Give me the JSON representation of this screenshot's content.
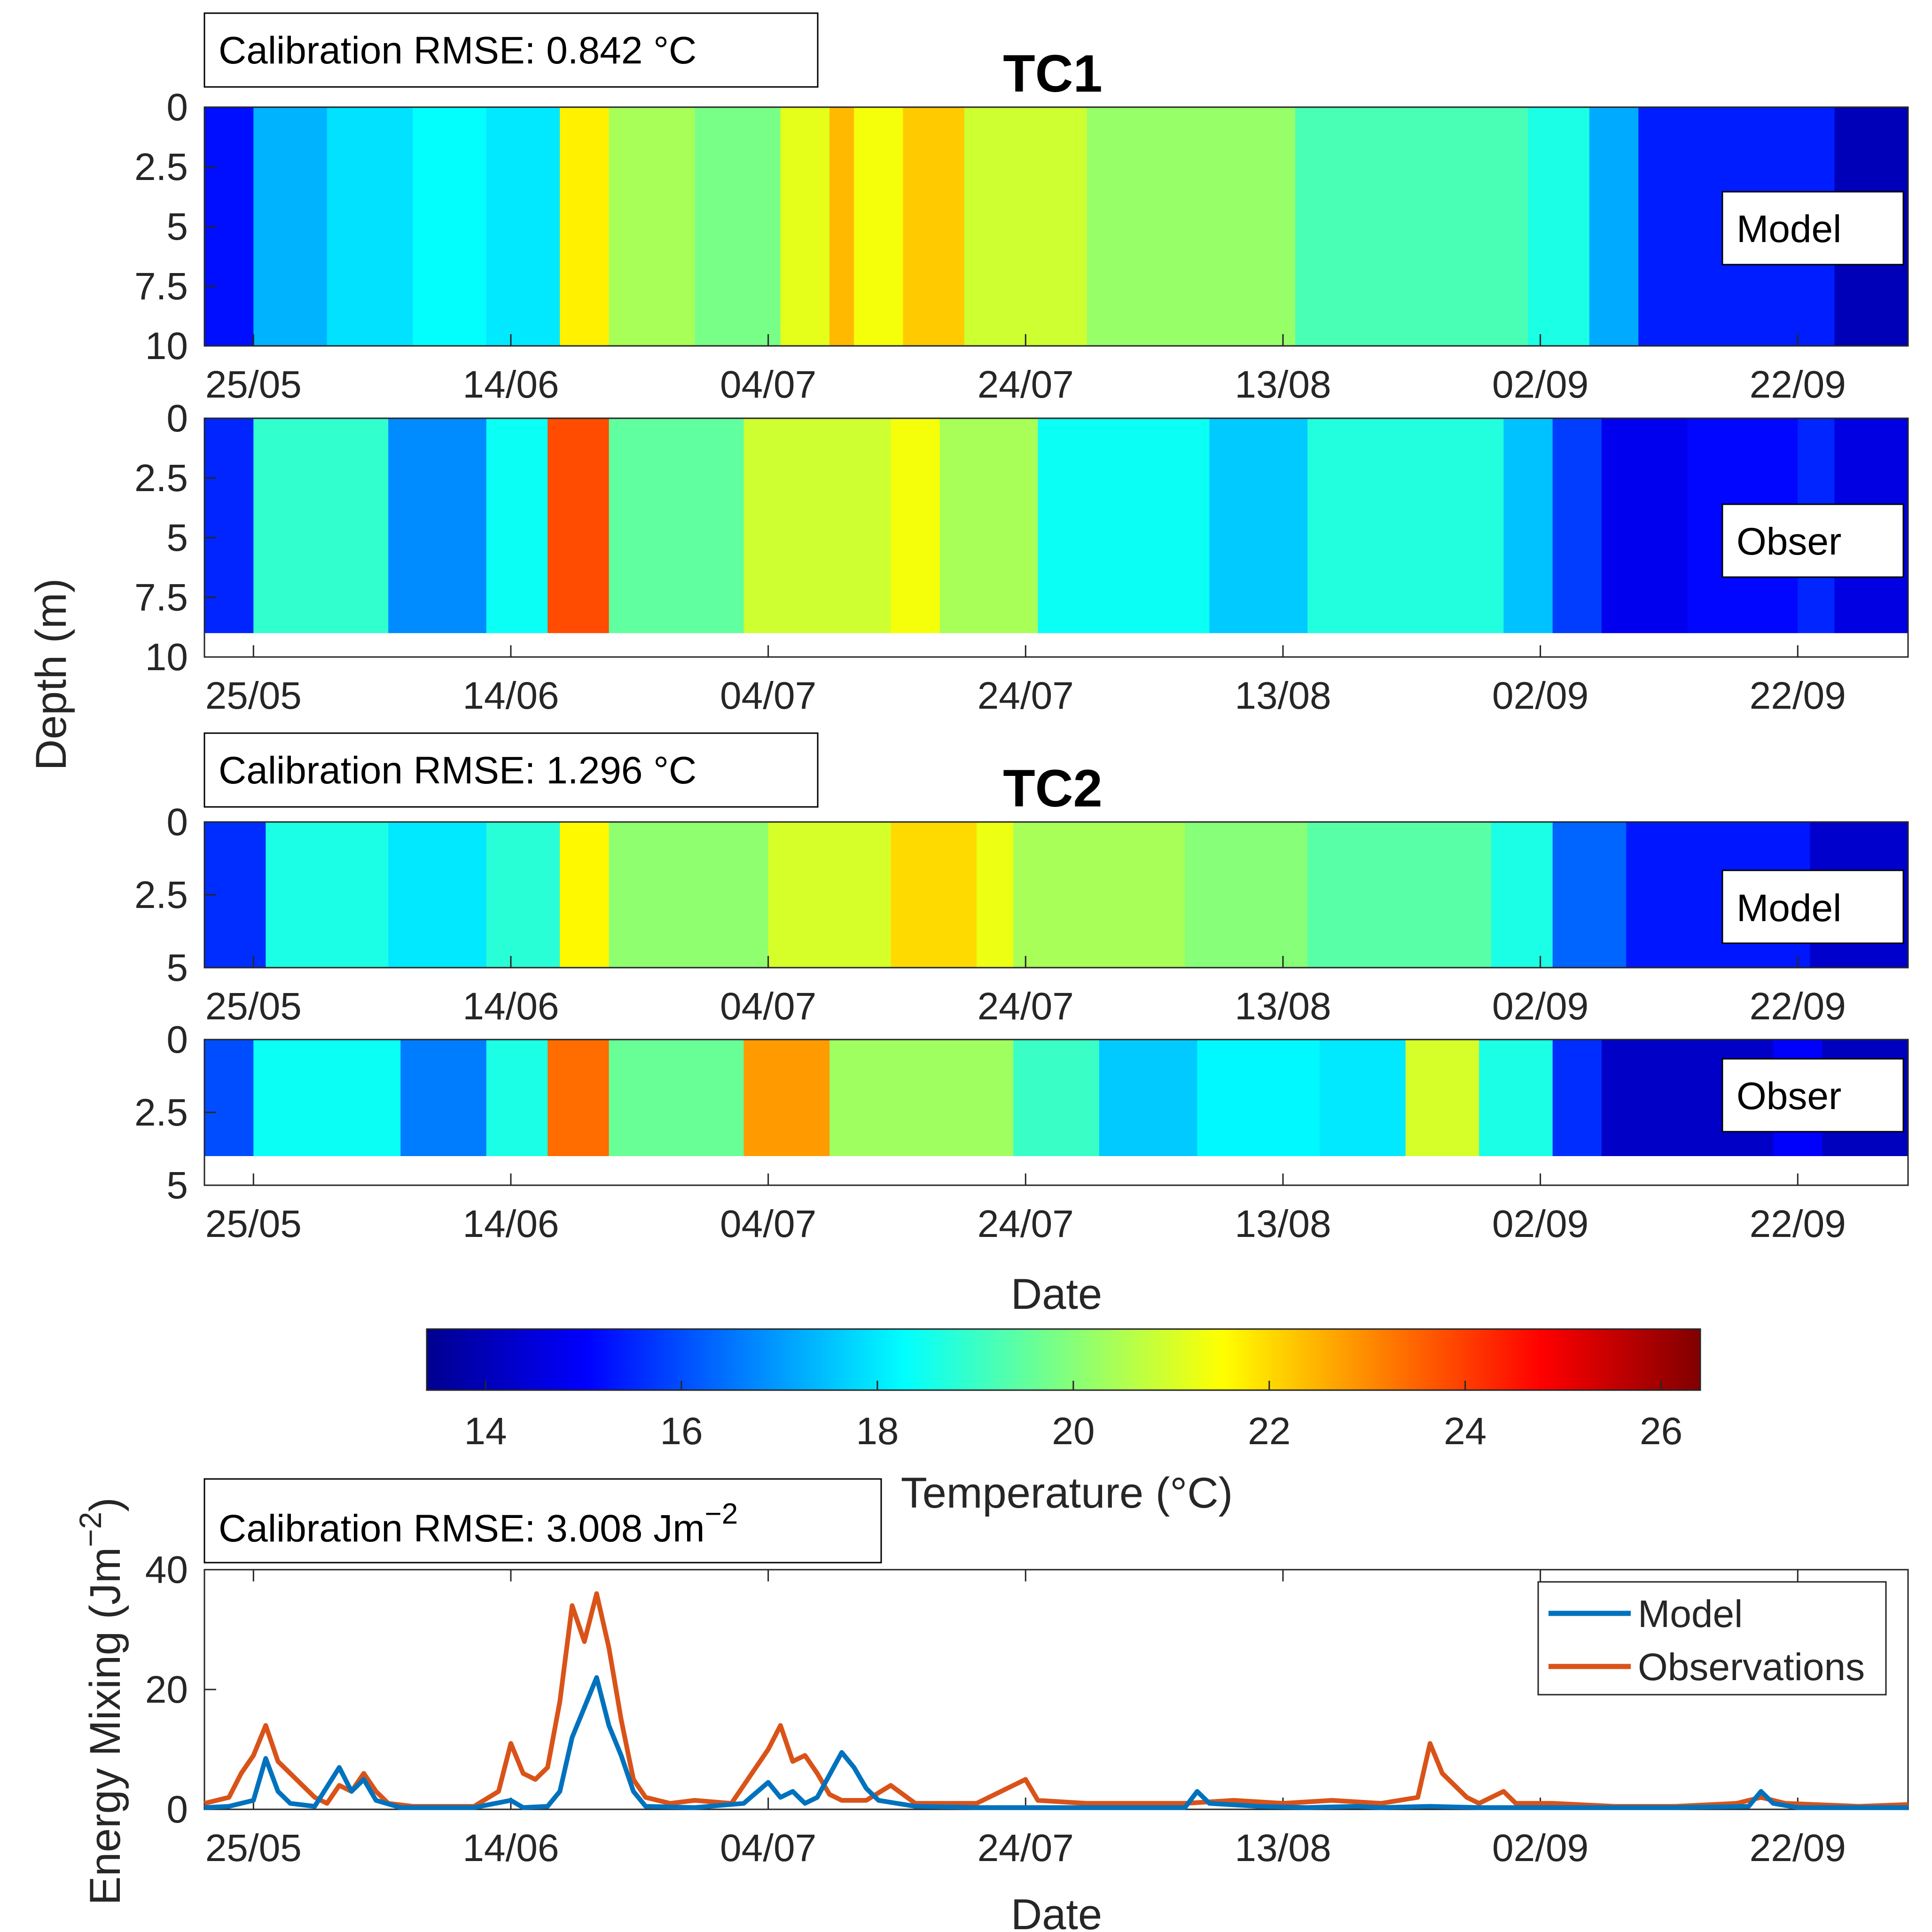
{
  "chart_data": [
    {
      "type": "heatmap",
      "panel": "TC1 Model",
      "title": "TC1",
      "annotation": "Calibration RMSE: 0.842 °C",
      "label": "Model",
      "ylim": [
        0,
        10
      ],
      "yticks": [
        "0",
        "2.5",
        "5",
        "7.5",
        "10"
      ],
      "xticks": [
        "25/05",
        "14/06",
        "04/07",
        "24/07",
        "13/08",
        "02/09",
        "22/09"
      ],
      "data_depth_max": 10,
      "bands": [
        {
          "day": 0,
          "temp": 15.2
        },
        {
          "day": 4,
          "temp": 17.3
        },
        {
          "day": 10,
          "temp": 17.9
        },
        {
          "day": 17,
          "temp": 18.3
        },
        {
          "day": 23,
          "temp": 18.0
        },
        {
          "day": 29,
          "temp": 21.7
        },
        {
          "day": 33,
          "temp": 20.4
        },
        {
          "day": 40,
          "temp": 19.8
        },
        {
          "day": 47,
          "temp": 21.2
        },
        {
          "day": 51,
          "temp": 22.4
        },
        {
          "day": 53,
          "temp": 21.4
        },
        {
          "day": 57,
          "temp": 22.2
        },
        {
          "day": 62,
          "temp": 20.9
        },
        {
          "day": 72,
          "temp": 20.2
        },
        {
          "day": 89,
          "temp": 19.2
        },
        {
          "day": 108,
          "temp": 18.6
        },
        {
          "day": 113,
          "temp": 17.2
        },
        {
          "day": 117,
          "temp": 15.4
        },
        {
          "day": 133,
          "temp": 14.0
        }
      ]
    },
    {
      "type": "heatmap",
      "panel": "TC1 Observations",
      "label": "Obser",
      "ylim": [
        0,
        10
      ],
      "yticks": [
        "0",
        "2.5",
        "5",
        "7.5",
        "10"
      ],
      "xticks": [
        "25/05",
        "14/06",
        "04/07",
        "24/07",
        "13/08",
        "02/09",
        "22/09"
      ],
      "data_depth_max": 9,
      "bands": [
        {
          "day": 0,
          "temp": 15.5
        },
        {
          "day": 4,
          "temp": 18.9
        },
        {
          "day": 15,
          "temp": 16.8
        },
        {
          "day": 23,
          "temp": 18.4
        },
        {
          "day": 28,
          "temp": 23.8
        },
        {
          "day": 33,
          "temp": 19.5
        },
        {
          "day": 44,
          "temp": 20.9
        },
        {
          "day": 56,
          "temp": 21.4
        },
        {
          "day": 60,
          "temp": 20.4
        },
        {
          "day": 68,
          "temp": 18.4
        },
        {
          "day": 82,
          "temp": 17.6
        },
        {
          "day": 90,
          "temp": 18.7
        },
        {
          "day": 106,
          "temp": 17.5
        },
        {
          "day": 110,
          "temp": 15.8
        },
        {
          "day": 114,
          "temp": 14.8
        },
        {
          "day": 121,
          "temp": 15.1
        },
        {
          "day": 130,
          "temp": 15.5
        },
        {
          "day": 133,
          "temp": 14.6
        }
      ]
    },
    {
      "type": "heatmap",
      "panel": "TC2 Model",
      "title": "TC2",
      "annotation": "Calibration RMSE: 1.296 °C",
      "label": "Model",
      "ylim": [
        0,
        5
      ],
      "yticks": [
        "0",
        "2.5",
        "5"
      ],
      "xticks": [
        "25/05",
        "14/06",
        "04/07",
        "24/07",
        "13/08",
        "02/09",
        "22/09"
      ],
      "data_depth_max": 5,
      "bands": [
        {
          "day": 0,
          "temp": 15.6
        },
        {
          "day": 5,
          "temp": 18.6
        },
        {
          "day": 15,
          "temp": 18.0
        },
        {
          "day": 23,
          "temp": 18.8
        },
        {
          "day": 29,
          "temp": 21.6
        },
        {
          "day": 33,
          "temp": 20.1
        },
        {
          "day": 46,
          "temp": 21.0
        },
        {
          "day": 56,
          "temp": 22.0
        },
        {
          "day": 63,
          "temp": 21.3
        },
        {
          "day": 66,
          "temp": 20.4
        },
        {
          "day": 80,
          "temp": 20.0
        },
        {
          "day": 90,
          "temp": 19.4
        },
        {
          "day": 105,
          "temp": 18.6
        },
        {
          "day": 110,
          "temp": 16.3
        },
        {
          "day": 116,
          "temp": 15.3
        },
        {
          "day": 131,
          "temp": 14.3
        }
      ]
    },
    {
      "type": "heatmap",
      "panel": "TC2 Observations",
      "label": "Obser",
      "ylim": [
        0,
        5
      ],
      "yticks": [
        "0",
        "2.5",
        "5"
      ],
      "xticks": [
        "25/05",
        "14/06",
        "04/07",
        "24/07",
        "13/08",
        "02/09",
        "22/09"
      ],
      "data_depth_max": 4,
      "bands": [
        {
          "day": 0,
          "temp": 16.0
        },
        {
          "day": 4,
          "temp": 18.4
        },
        {
          "day": 16,
          "temp": 16.6
        },
        {
          "day": 23,
          "temp": 18.6
        },
        {
          "day": 28,
          "temp": 23.4
        },
        {
          "day": 33,
          "temp": 19.6
        },
        {
          "day": 44,
          "temp": 22.8
        },
        {
          "day": 51,
          "temp": 20.3
        },
        {
          "day": 66,
          "temp": 19.0
        },
        {
          "day": 73,
          "temp": 17.6
        },
        {
          "day": 81,
          "temp": 18.2
        },
        {
          "day": 91,
          "temp": 18.0
        },
        {
          "day": 98,
          "temp": 21.0
        },
        {
          "day": 104,
          "temp": 18.6
        },
        {
          "day": 110,
          "temp": 15.6
        },
        {
          "day": 114,
          "temp": 14.2
        },
        {
          "day": 128,
          "temp": 15.0
        },
        {
          "day": 132,
          "temp": 14.1
        }
      ]
    },
    {
      "type": "colorbar",
      "label": "Temperature (°C)",
      "range": [
        13.4,
        26.4
      ],
      "ticks": [
        "14",
        "16",
        "18",
        "20",
        "22",
        "24",
        "26"
      ],
      "colormap": [
        "#00008f",
        "#0000ff",
        "#00ffff",
        "#ffff00",
        "#ff0000",
        "#800000"
      ]
    },
    {
      "type": "line",
      "annotation": "Calibration RMSE: 3.008 Jm",
      "annotation_sup": "−2",
      "xlabel": "Date",
      "ylabel": "Energy Mixing (Jm",
      "ylabel_sup": "−2",
      "ylabel_end": ")",
      "ylim": [
        0,
        40
      ],
      "yticks": [
        "0",
        "20",
        "40"
      ],
      "xticks": [
        "25/05",
        "14/06",
        "04/07",
        "24/07",
        "13/08",
        "02/09",
        "22/09"
      ],
      "x_range_days": [
        0,
        139
      ],
      "legend_position": "top-right",
      "series": [
        {
          "name": "Model",
          "color": "#0072bd",
          "points": [
            [
              0,
              0.3
            ],
            [
              2,
              0.5
            ],
            [
              4,
              1.5
            ],
            [
              5,
              8.5
            ],
            [
              6,
              3
            ],
            [
              7,
              1
            ],
            [
              9,
              0.5
            ],
            [
              11,
              7
            ],
            [
              12,
              3
            ],
            [
              13,
              5
            ],
            [
              14,
              1.5
            ],
            [
              16,
              0.3
            ],
            [
              22,
              0.3
            ],
            [
              25,
              1.5
            ],
            [
              26,
              0.3
            ],
            [
              28,
              0.5
            ],
            [
              29,
              3
            ],
            [
              30,
              12
            ],
            [
              31,
              17
            ],
            [
              32,
              22
            ],
            [
              33,
              14
            ],
            [
              34,
              9
            ],
            [
              35,
              3
            ],
            [
              36,
              0.5
            ],
            [
              40,
              0.3
            ],
            [
              44,
              1
            ],
            [
              46,
              4.5
            ],
            [
              47,
              2
            ],
            [
              48,
              3
            ],
            [
              49,
              1
            ],
            [
              50,
              2
            ],
            [
              52,
              9.5
            ],
            [
              53,
              7
            ],
            [
              54,
              3.5
            ],
            [
              55,
              1.5
            ],
            [
              58,
              0.5
            ],
            [
              63,
              0.3
            ],
            [
              70,
              0.3
            ],
            [
              80,
              0.3
            ],
            [
              81,
              3
            ],
            [
              82,
              1
            ],
            [
              86,
              0.5
            ],
            [
              90,
              0.3
            ],
            [
              94,
              0.5
            ],
            [
              96,
              0.3
            ],
            [
              100,
              0.5
            ],
            [
              104,
              0.3
            ],
            [
              110,
              0.3
            ],
            [
              120,
              0.3
            ],
            [
              126,
              0.5
            ],
            [
              127,
              3
            ],
            [
              128,
              1
            ],
            [
              130,
              0.3
            ],
            [
              139,
              0.3
            ]
          ]
        },
        {
          "name": "Observations",
          "color": "#d95319",
          "points": [
            [
              0,
              1
            ],
            [
              2,
              2
            ],
            [
              3,
              6
            ],
            [
              4,
              9
            ],
            [
              5,
              14
            ],
            [
              6,
              8
            ],
            [
              7,
              6
            ],
            [
              8,
              4
            ],
            [
              9,
              2
            ],
            [
              10,
              1
            ],
            [
              11,
              4
            ],
            [
              12,
              3
            ],
            [
              13,
              6
            ],
            [
              14,
              3
            ],
            [
              15,
              1
            ],
            [
              17,
              0.5
            ],
            [
              22,
              0.5
            ],
            [
              24,
              3
            ],
            [
              25,
              11
            ],
            [
              26,
              6
            ],
            [
              27,
              5
            ],
            [
              28,
              7
            ],
            [
              29,
              18
            ],
            [
              30,
              34
            ],
            [
              31,
              28
            ],
            [
              32,
              36
            ],
            [
              33,
              27
            ],
            [
              34,
              15
            ],
            [
              35,
              5
            ],
            [
              36,
              2
            ],
            [
              38,
              1
            ],
            [
              40,
              1.5
            ],
            [
              43,
              1
            ],
            [
              46,
              10
            ],
            [
              47,
              14
            ],
            [
              48,
              8
            ],
            [
              49,
              9
            ],
            [
              50,
              6
            ],
            [
              51,
              2.5
            ],
            [
              52,
              1.5
            ],
            [
              54,
              1.5
            ],
            [
              56,
              4
            ],
            [
              58,
              1
            ],
            [
              63,
              1
            ],
            [
              66,
              4
            ],
            [
              67,
              5
            ],
            [
              68,
              1.5
            ],
            [
              72,
              1
            ],
            [
              76,
              1
            ],
            [
              80,
              1
            ],
            [
              84,
              1.5
            ],
            [
              88,
              1
            ],
            [
              92,
              1.5
            ],
            [
              96,
              1
            ],
            [
              99,
              2
            ],
            [
              100,
              11
            ],
            [
              101,
              6
            ],
            [
              102,
              4
            ],
            [
              103,
              2
            ],
            [
              104,
              1
            ],
            [
              106,
              3
            ],
            [
              107,
              1
            ],
            [
              110,
              1
            ],
            [
              115,
              0.5
            ],
            [
              120,
              0.5
            ],
            [
              125,
              1
            ],
            [
              127,
              2
            ],
            [
              129,
              1
            ],
            [
              135,
              0.5
            ],
            [
              139,
              0.8
            ]
          ]
        }
      ]
    }
  ],
  "shared": {
    "depth_axis_label": "Depth (m)",
    "date_label": "Date",
    "energy_xlabel": "Date"
  },
  "legend": {
    "model": "Model",
    "observations": "Observations"
  }
}
